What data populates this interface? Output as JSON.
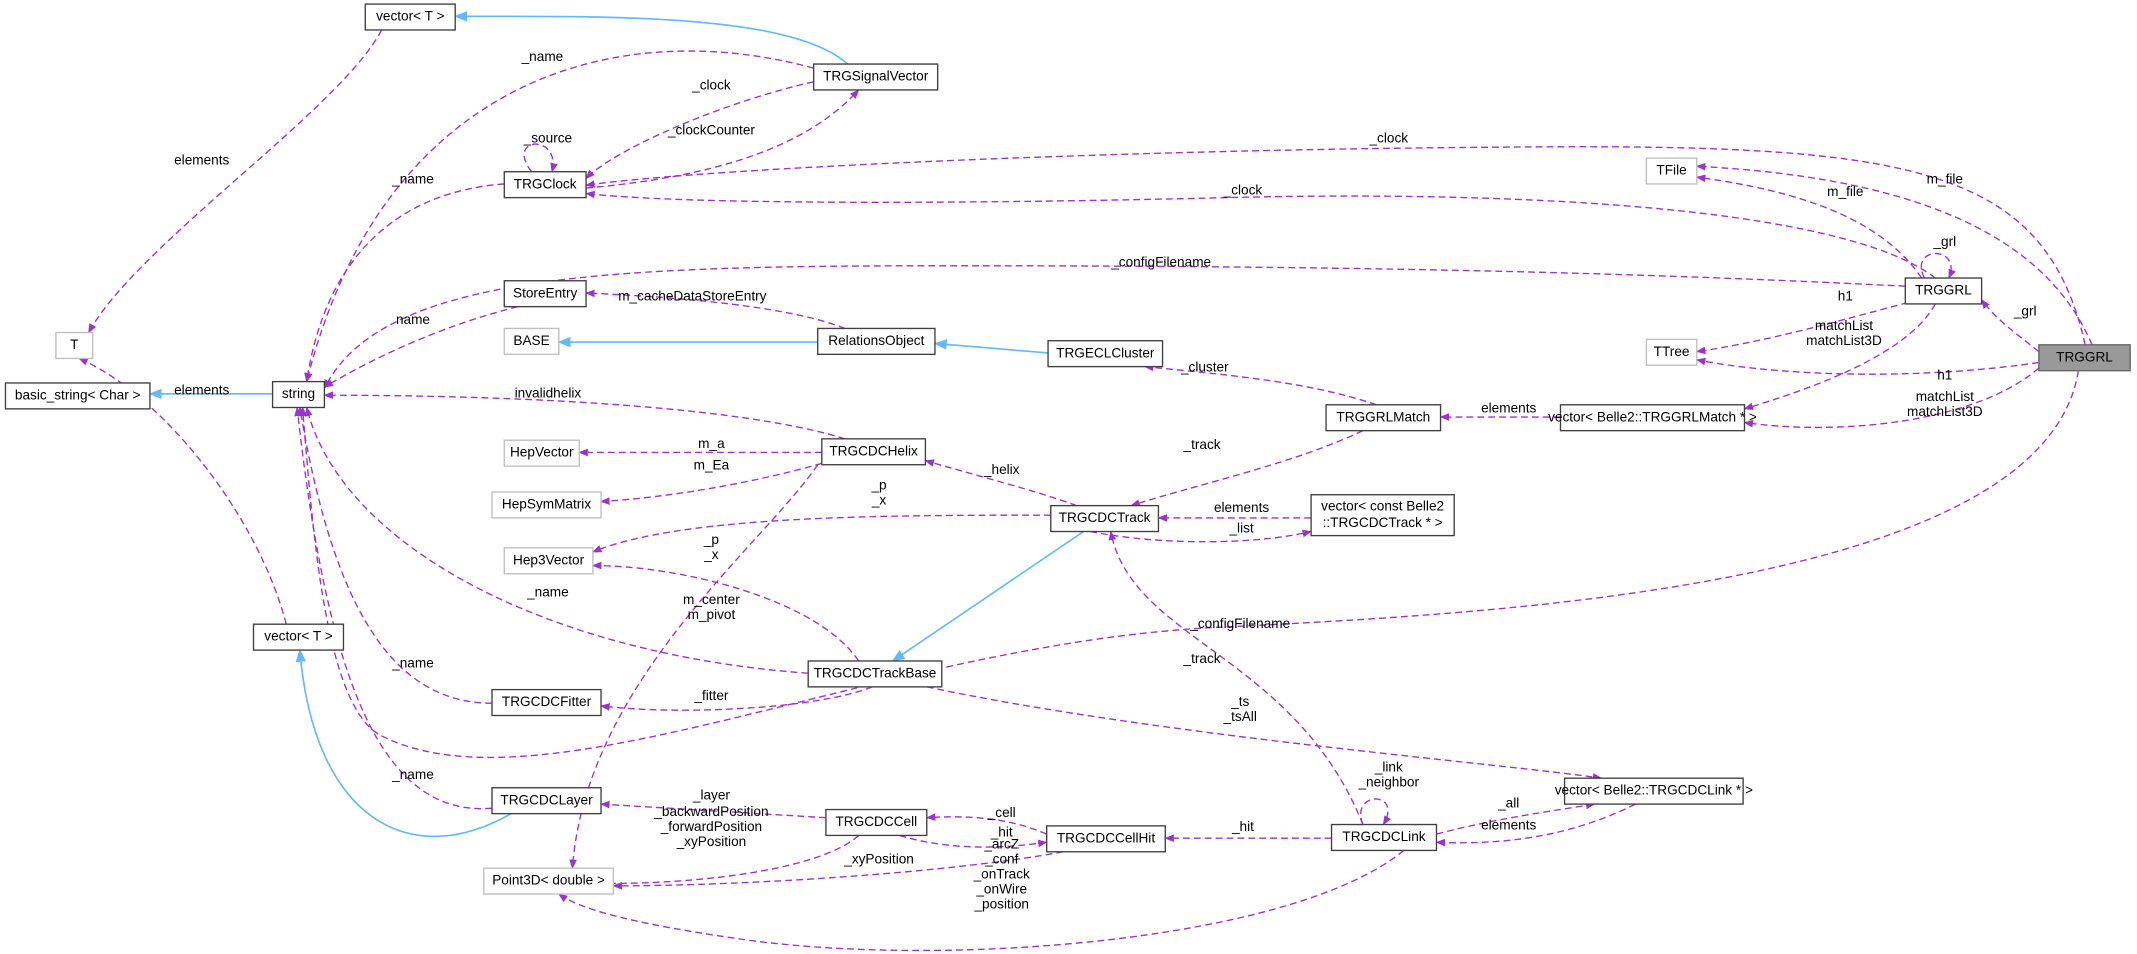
{
  "nodes": [
    {
      "label": [
        "vector< T >"
      ]
    },
    {
      "label": [
        "TRGSignalVector"
      ]
    },
    {
      "label": [
        "TRGClock"
      ]
    },
    {
      "label": [
        "TFile"
      ]
    },
    {
      "label": [
        "TRGGRL"
      ]
    },
    {
      "label": [
        "TRGGRL"
      ]
    },
    {
      "label": [
        "StoreEntry"
      ]
    },
    {
      "label": [
        "T"
      ]
    },
    {
      "label": [
        "BASE"
      ]
    },
    {
      "label": [
        "RelationsObject"
      ]
    },
    {
      "label": [
        "TRGECLCluster"
      ]
    },
    {
      "label": [
        "TTree"
      ]
    },
    {
      "label": [
        "basic_string< Char >"
      ]
    },
    {
      "label": [
        "string"
      ]
    },
    {
      "label": [
        "TRGGRLMatch"
      ]
    },
    {
      "label": [
        "vector< Belle2::TRGGRLMatch * >"
      ]
    },
    {
      "label": [
        "HepVector"
      ]
    },
    {
      "label": [
        "TRGCDCHelix"
      ]
    },
    {
      "label": [
        "HepSymMatrix"
      ]
    },
    {
      "label": [
        "TRGCDCTrack"
      ]
    },
    {
      "label": [
        "vector< const Belle2",
        "::TRGCDCTrack * >"
      ]
    },
    {
      "label": [
        "Hep3Vector"
      ]
    },
    {
      "label": [
        "vector< T >"
      ]
    },
    {
      "label": [
        "TRGCDCTrackBase"
      ]
    },
    {
      "label": [
        "TRGCDCFitter"
      ]
    },
    {
      "label": [
        "vector< Belle2::TRGCDCLink * >"
      ]
    },
    {
      "label": [
        "TRGCDCLayer"
      ]
    },
    {
      "label": [
        "TRGCDCCell"
      ]
    },
    {
      "label": [
        "TRGCDCCellHit"
      ]
    },
    {
      "label": [
        "TRGCDCLink"
      ]
    },
    {
      "label": [
        "Point3D< double >"
      ]
    }
  ],
  "edges": [
    {
      "label": [
        "elements"
      ]
    },
    {
      "label": [
        "_name"
      ]
    },
    {
      "label": [
        "_clock"
      ]
    },
    {
      "label": [
        "_clockCounter"
      ]
    },
    {
      "label": [
        "_source"
      ]
    },
    {
      "label": [
        "_name"
      ]
    },
    {
      "label": [
        "_clock"
      ]
    },
    {
      "label": [
        "m_file"
      ]
    },
    {
      "label": [
        "_clock"
      ]
    },
    {
      "label": [
        "m_file"
      ]
    },
    {
      "label": [
        "_grl"
      ]
    },
    {
      "label": [
        "_configFilename"
      ]
    },
    {
      "label": [
        "_grl"
      ]
    },
    {
      "label": [
        "h1"
      ]
    },
    {
      "label": [
        "matchList",
        "matchList3D"
      ]
    },
    {
      "label": [
        "h1"
      ]
    },
    {
      "label": [
        "matchList",
        "matchList3D"
      ]
    },
    {
      "label": [
        "name"
      ]
    },
    {
      "label": [
        "m_cacheDataStoreEntry"
      ]
    },
    {
      "label": [
        "_cluster"
      ]
    },
    {
      "label": [
        "elements"
      ]
    },
    {
      "label": [
        "elements"
      ]
    },
    {
      "label": [
        "invalidhelix"
      ]
    },
    {
      "label": [
        "_track"
      ]
    },
    {
      "label": [
        "_helix"
      ]
    },
    {
      "label": [
        "m_a"
      ]
    },
    {
      "label": [
        "m_Ea"
      ]
    },
    {
      "label": [
        "_p",
        "_x"
      ]
    },
    {
      "label": [
        "elements"
      ]
    },
    {
      "label": [
        "_list"
      ]
    },
    {
      "label": [
        "_p",
        "_x"
      ]
    },
    {
      "label": [
        "m_center",
        "m_pivot"
      ]
    },
    {
      "label": [
        "_name"
      ]
    },
    {
      "label": [
        "_configFilename"
      ]
    },
    {
      "label": [
        "_track"
      ]
    },
    {
      "label": [
        "_name"
      ]
    },
    {
      "label": [
        "_fitter"
      ]
    },
    {
      "label": [
        "_ts",
        "_tsAll"
      ]
    },
    {
      "label": [
        "_name"
      ]
    },
    {
      "label": [
        "_link",
        "_neighbor"
      ]
    },
    {
      "label": [
        "_all"
      ]
    },
    {
      "label": [
        "elements"
      ]
    },
    {
      "label": [
        "_layer"
      ]
    },
    {
      "label": [
        "_cell"
      ]
    },
    {
      "label": [
        "_hit"
      ]
    },
    {
      "label": [
        "_hit"
      ]
    },
    {
      "label": [
        "_backwardPosition",
        "_forwardPosition",
        "_xyPosition"
      ]
    },
    {
      "label": [
        "_xyPosition"
      ]
    },
    {
      "label": [
        "_arcZ",
        "_conf",
        "_onTrack",
        "_onWire",
        "_position"
      ]
    }
  ]
}
